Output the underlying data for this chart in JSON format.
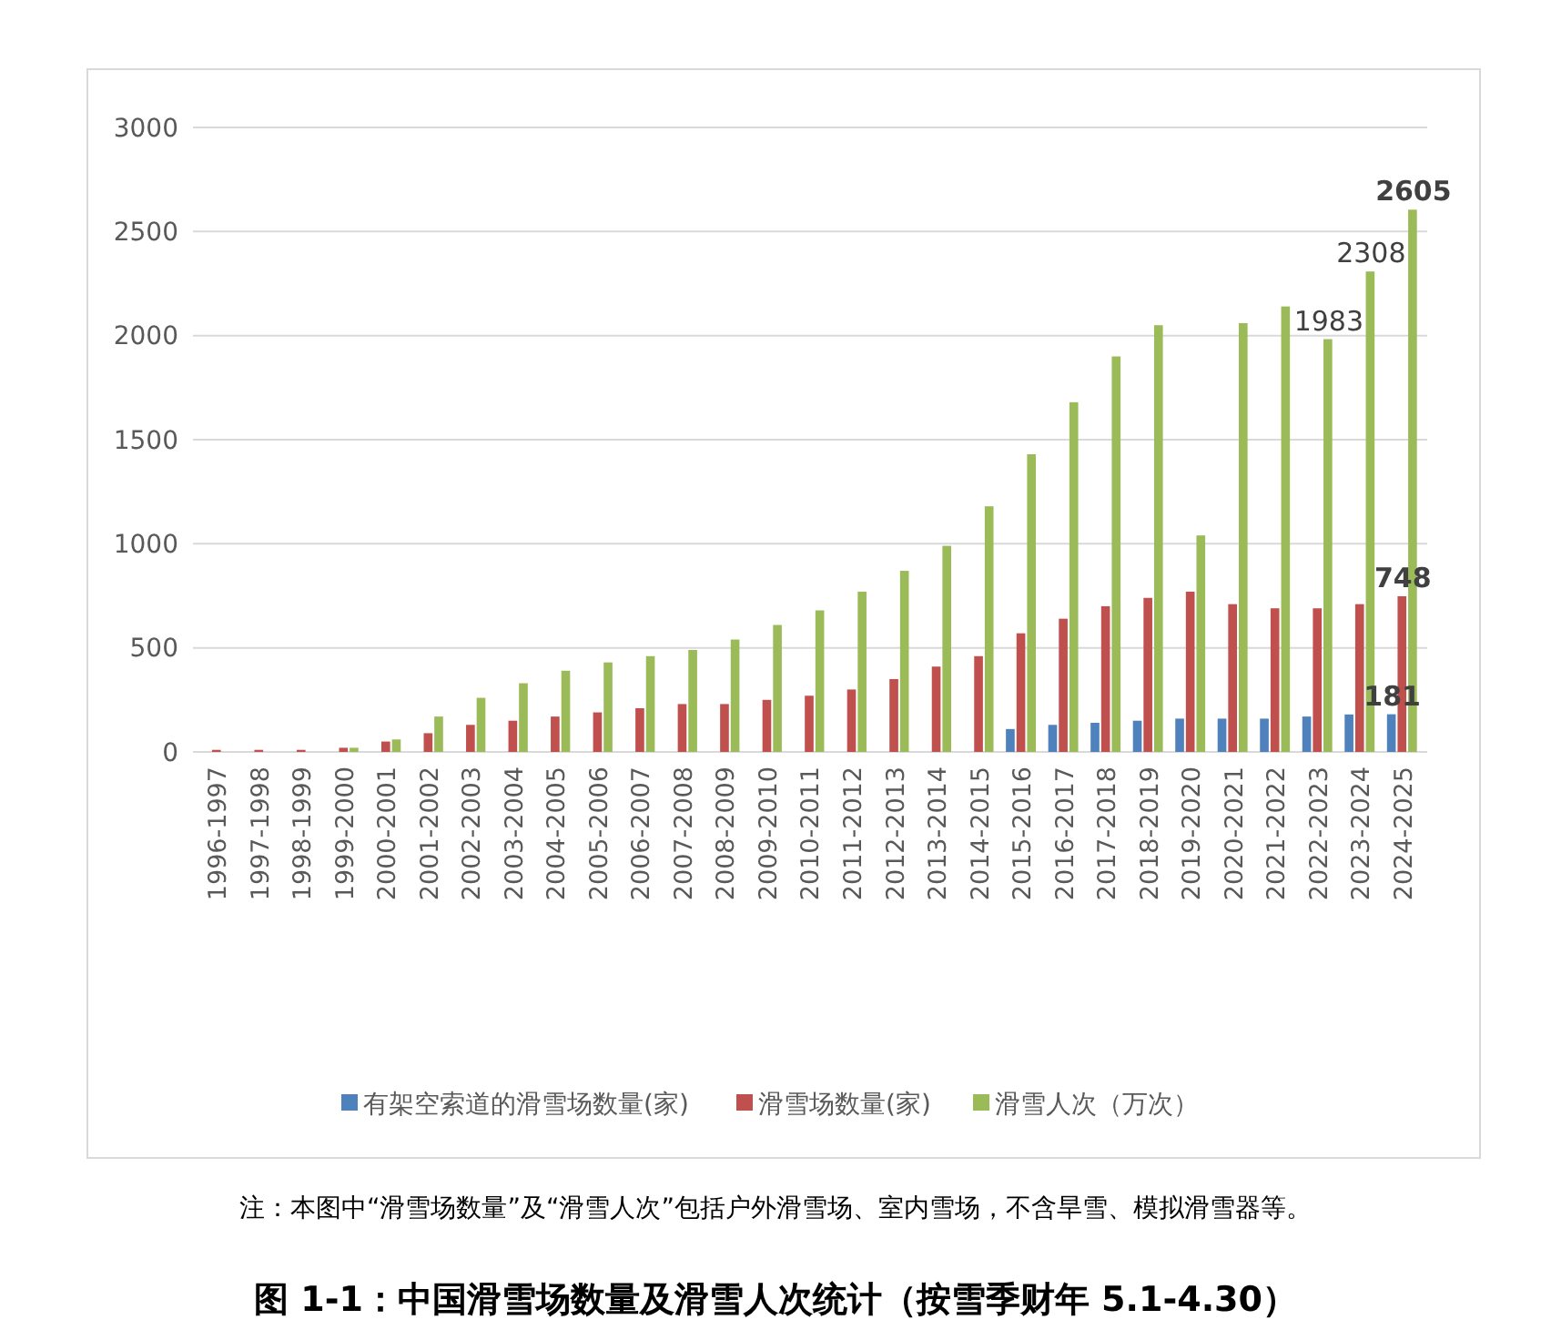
{
  "chart_data": {
    "type": "bar",
    "title": "图 1-1：中国滑雪场数量及滑雪人次统计（按雪季财年 5.1-4.30）",
    "annotations": [
      "注：本图中“滑雪场数量”及“滑雪人次”包括户外滑雪场、室内雪场，不含旱雪、模拟滑雪器等。"
    ],
    "categories": [
      "1996-1997",
      "1997-1998",
      "1998-1999",
      "1999-2000",
      "2000-2001",
      "2001-2002",
      "2002-2003",
      "2003-2004",
      "2004-2005",
      "2005-2006",
      "2006-2007",
      "2007-2008",
      "2008-2009",
      "2009-2010",
      "2010-2011",
      "2011-2012",
      "2012-2013",
      "2013-2014",
      "2014-2015",
      "2015-2016",
      "2016-2017",
      "2017-2018",
      "2018-2019",
      "2019-2020",
      "2020-2021",
      "2021-2022",
      "2022-2023",
      "2023-2024",
      "2024-2025"
    ],
    "series": [
      {
        "name": "有架空索道的滑雪场数量(家)",
        "color": "#4f81bd",
        "values": [
          null,
          null,
          null,
          null,
          null,
          null,
          null,
          null,
          null,
          null,
          null,
          null,
          null,
          null,
          null,
          null,
          null,
          null,
          null,
          110,
          130,
          140,
          150,
          160,
          160,
          160,
          170,
          180,
          181
        ],
        "value_labels": [
          null,
          null,
          null,
          null,
          null,
          null,
          null,
          null,
          null,
          null,
          null,
          null,
          null,
          null,
          null,
          null,
          null,
          null,
          null,
          null,
          null,
          null,
          null,
          null,
          null,
          null,
          null,
          null,
          "181"
        ]
      },
      {
        "name": "滑雪场数量(家)",
        "color": "#c0504d",
        "values": [
          10,
          10,
          10,
          20,
          50,
          90,
          130,
          150,
          170,
          190,
          210,
          230,
          230,
          250,
          270,
          300,
          350,
          410,
          460,
          570,
          640,
          700,
          740,
          770,
          710,
          690,
          690,
          710,
          748
        ],
        "value_labels": [
          null,
          null,
          null,
          null,
          null,
          null,
          null,
          null,
          null,
          null,
          null,
          null,
          null,
          null,
          null,
          null,
          null,
          null,
          null,
          null,
          null,
          null,
          null,
          null,
          null,
          null,
          null,
          null,
          "748"
        ]
      },
      {
        "name": "滑雪人次（万次）",
        "color": "#9bbb59",
        "values": [
          null,
          null,
          null,
          20,
          60,
          170,
          260,
          330,
          390,
          430,
          460,
          490,
          540,
          610,
          680,
          770,
          870,
          990,
          1180,
          1430,
          1680,
          1900,
          2050,
          1040,
          2060,
          2140,
          1983,
          2308,
          2605
        ],
        "value_labels": [
          null,
          null,
          null,
          null,
          null,
          null,
          null,
          null,
          null,
          null,
          null,
          null,
          null,
          null,
          null,
          null,
          null,
          null,
          null,
          null,
          null,
          null,
          null,
          null,
          null,
          null,
          "1983",
          "2308",
          "2605"
        ]
      }
    ],
    "ylim": [
      0,
      3000
    ],
    "yticks": [
      0,
      500,
      1000,
      1500,
      2000,
      2500,
      3000
    ],
    "grid": "y",
    "legend": "bottom"
  }
}
